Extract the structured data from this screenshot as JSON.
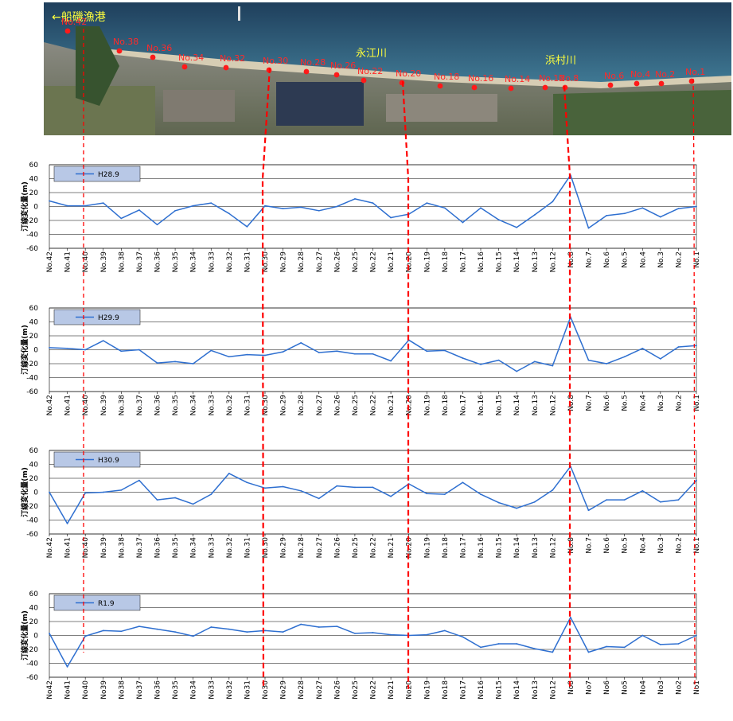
{
  "aerial": {
    "harbor_label": "←船磯漁港",
    "rivers": [
      {
        "name": "永江川"
      },
      {
        "name": "浜村川"
      }
    ],
    "points": [
      {
        "label": "No.42"
      },
      {
        "label": "No.38"
      },
      {
        "label": "No.36"
      },
      {
        "label": "No.34"
      },
      {
        "label": "No.32"
      },
      {
        "label": "No.30"
      },
      {
        "label": "No.28"
      },
      {
        "label": "No.26"
      },
      {
        "label": "No.22"
      },
      {
        "label": "No.20"
      },
      {
        "label": "No.18"
      },
      {
        "label": "No.16"
      },
      {
        "label": "No.14"
      },
      {
        "label": "No.12"
      },
      {
        "label": "No.8"
      },
      {
        "label": "No.6"
      },
      {
        "label": "No.4"
      },
      {
        "label": "No.2"
      },
      {
        "label": "No.1"
      }
    ]
  },
  "colors": {
    "series": "#2e6fd0",
    "guide": "#ff0000",
    "legend_bg": "#b8c8e6",
    "grid": "#000000"
  },
  "chart_data": [
    {
      "type": "line",
      "ylabel": "汀線変化量(m)",
      "ylim": [
        -60,
        60
      ],
      "yticks": [
        "60",
        "40",
        "20",
        "0",
        "-20",
        "-40",
        "-60"
      ],
      "categories": [
        "No.42",
        "No.41",
        "No.40",
        "No.39",
        "No.38",
        "No.37",
        "No.36",
        "No.35",
        "No.34",
        "No.33",
        "No.32",
        "No.31",
        "No.30",
        "No.29",
        "No.28",
        "No.27",
        "No.26",
        "No.25",
        "No.22",
        "No.21",
        "No.20",
        "No.19",
        "No.18",
        "No.17",
        "No.16",
        "No.15",
        "No.14",
        "No.13",
        "No.12",
        "No.8",
        "No.7",
        "No.6",
        "No.5",
        "No.4",
        "No.3",
        "No.2",
        "No.1"
      ],
      "legend_position": "top-left",
      "series": [
        {
          "name": "H28.9",
          "values": [
            8,
            1,
            1,
            5,
            -17,
            -5,
            -26,
            -6,
            1,
            5,
            -10,
            -29,
            1,
            -3,
            -1,
            -6,
            0,
            11,
            5,
            -16,
            -11,
            5,
            -2,
            -23,
            -2,
            -19,
            -30,
            -12,
            7,
            45,
            -31,
            -13,
            -10,
            -2,
            -15,
            -3,
            0
          ]
        }
      ]
    },
    {
      "type": "line",
      "ylabel": "汀線変化量(m)",
      "ylim": [
        -60,
        60
      ],
      "yticks": [
        "60",
        "40",
        "20",
        "0",
        "-20",
        "-40",
        "-60"
      ],
      "categories": [
        "No.42",
        "No.41",
        "No.40",
        "No.39",
        "No.38",
        "No.37",
        "No.36",
        "No.35",
        "No.34",
        "No.33",
        "No.32",
        "No.31",
        "No.30",
        "No.29",
        "No.28",
        "No.27",
        "No.26",
        "No.25",
        "No.22",
        "No.21",
        "No.20",
        "No.19",
        "No.18",
        "No.17",
        "No.16",
        "No.15",
        "No.14",
        "No.13",
        "No.12",
        "No.8",
        "No.7",
        "No.6",
        "No.5",
        "No.4",
        "No.3",
        "No.2",
        "No.1"
      ],
      "legend_position": "top-left",
      "series": [
        {
          "name": "H29.9",
          "values": [
            3,
            2,
            0,
            13,
            -2,
            0,
            -19,
            -17,
            -20,
            -1,
            -10,
            -7,
            -8,
            -3,
            10,
            -4,
            -2,
            -6,
            -6,
            -16,
            14,
            -2,
            -1,
            -12,
            -21,
            -15,
            -31,
            -17,
            -23,
            47,
            -15,
            -20,
            -10,
            2,
            -13,
            4,
            6
          ]
        }
      ]
    },
    {
      "type": "line",
      "ylabel": "汀線変化量(m)",
      "ylim": [
        -60,
        60
      ],
      "yticks": [
        "60",
        "40",
        "20",
        "0",
        "-20",
        "-40",
        "-60"
      ],
      "categories": [
        "No.42",
        "No.41",
        "No.40",
        "No.39",
        "No.38",
        "No.37",
        "No.36",
        "No.35",
        "No.34",
        "No.33",
        "No.32",
        "No.31",
        "No.30",
        "No.29",
        "No.28",
        "No.27",
        "No.26",
        "No.25",
        "No.22",
        "No.21",
        "No.20",
        "No.19",
        "No.18",
        "No.17",
        "No.16",
        "No.15",
        "No.14",
        "No.13",
        "No.12",
        "No.8",
        "No.7",
        "No.6",
        "No.5",
        "No.4",
        "No.3",
        "No.2",
        "No.1"
      ],
      "legend_position": "top-left",
      "series": [
        {
          "name": "H30.9",
          "values": [
            0,
            -45,
            -1,
            0,
            3,
            17,
            -11,
            -8,
            -17,
            -3,
            27,
            14,
            6,
            8,
            2,
            -9,
            9,
            7,
            7,
            -6,
            12,
            -2,
            -3,
            14,
            -3,
            -15,
            -23,
            -14,
            3,
            37,
            -26,
            -11,
            -11,
            2,
            -14,
            -11,
            17
          ]
        }
      ]
    },
    {
      "type": "line",
      "ylabel": "汀線変化量(m)",
      "ylim": [
        -60,
        60
      ],
      "yticks": [
        "60",
        "40",
        "20",
        "0",
        "-20",
        "-40",
        "-60"
      ],
      "categories": [
        "No42",
        "No41",
        "No40",
        "No39",
        "No38",
        "No37",
        "No36",
        "No35",
        "No34",
        "No33",
        "No32",
        "No31",
        "No30",
        "No29",
        "No28",
        "No27",
        "No26",
        "No25",
        "No22",
        "No21",
        "No20",
        "No19",
        "No18",
        "No17",
        "No16",
        "No15",
        "No14",
        "No13",
        "No12",
        "No8",
        "No7",
        "No6",
        "No5",
        "No4",
        "No3",
        "No2",
        "No1"
      ],
      "legend_position": "top-left",
      "series": [
        {
          "name": "R1.9",
          "values": [
            3,
            -45,
            -1,
            7,
            6,
            13,
            9,
            5,
            -1,
            12,
            9,
            5,
            7,
            5,
            16,
            12,
            13,
            3,
            4,
            1,
            0,
            1,
            7,
            -2,
            -17,
            -12,
            -12,
            -19,
            -24,
            26,
            -24,
            -16,
            -17,
            0,
            -13,
            -12,
            0
          ]
        }
      ]
    }
  ]
}
